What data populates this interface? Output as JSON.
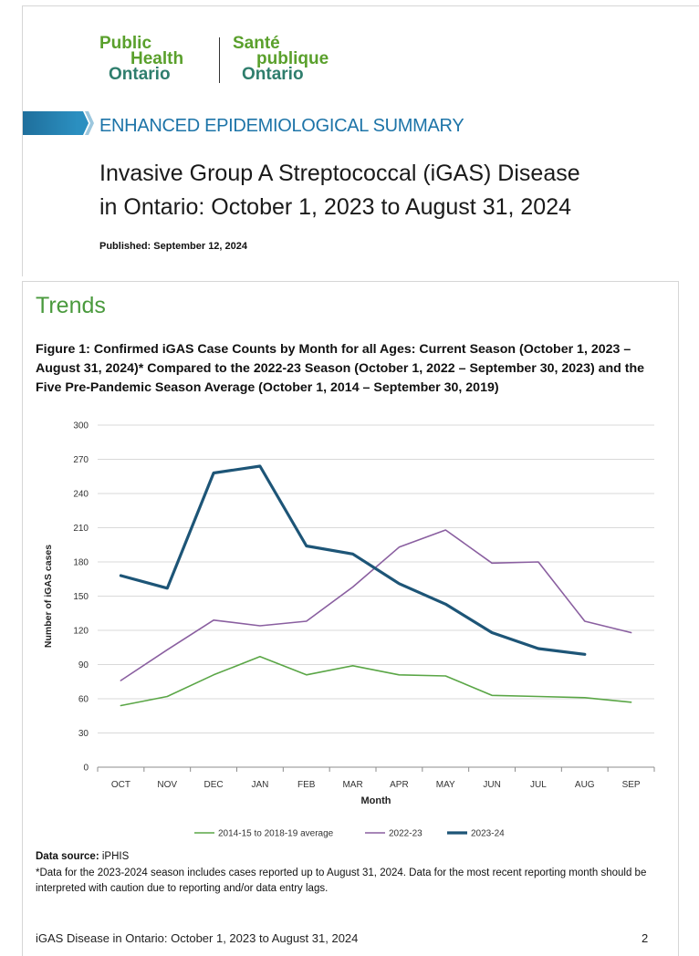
{
  "logo": {
    "en_line1": "Public",
    "en_line2": "Health",
    "en_line3": "Ontario",
    "fr_line1": "Santé",
    "fr_line2": "publique",
    "fr_line3": "Ontario"
  },
  "banner": "ENHANCED EPIDEMIOLOGICAL SUMMARY",
  "title_line1": "Invasive Group A Streptococcal (iGAS) Disease",
  "title_line2": "in Ontario: October 1, 2023 to August 31, 2024",
  "published": "Published: September 12, 2024",
  "section_heading": "Trends",
  "figure_caption": "Figure 1: Confirmed iGAS Case Counts by Month for all Ages: Current Season (October 1, 2023 – August 31, 2024)* Compared to the 2022-23 Season (October 1, 2022 – September 30, 2023) and the Five Pre-Pandemic Season Average (October 1, 2014 – September 30, 2019)",
  "data_source_label": "Data source:",
  "data_source_value": "iPHIS",
  "footnote": "*Data for the 2023-2024 season includes cases reported up to August 31, 2024. Data for the most recent reporting month should be interpreted with caution due to reporting and/or data entry lags.",
  "footer_left": "iGAS Disease in Ontario: October 1, 2023 to August 31, 2024",
  "footer_page": "2",
  "colors": {
    "avg": "#5aa646",
    "s2223": "#8a5fa0",
    "s2324": "#1d5577",
    "grid": "#d9d9d9",
    "heading_green": "#4a9a3d",
    "banner_blue": "#1d74a8"
  },
  "chart_data": {
    "type": "line",
    "xlabel": "Month",
    "ylabel": "Number of iGAS cases",
    "ylim": [
      0,
      300
    ],
    "yticks": [
      0,
      30,
      60,
      90,
      120,
      150,
      180,
      210,
      240,
      270,
      300
    ],
    "categories": [
      "OCT",
      "NOV",
      "DEC",
      "JAN",
      "FEB",
      "MAR",
      "APR",
      "MAY",
      "JUN",
      "JUL",
      "AUG",
      "SEP"
    ],
    "grid": true,
    "legend_position": "bottom",
    "series": [
      {
        "name": "2014-15 to 2018-19 average",
        "values": [
          54,
          62,
          81,
          97,
          81,
          89,
          81,
          80,
          63,
          62,
          61,
          57
        ]
      },
      {
        "name": "2022-23",
        "values": [
          76,
          103,
          129,
          124,
          128,
          158,
          193,
          208,
          179,
          180,
          128,
          118
        ]
      },
      {
        "name": "2023-24",
        "values": [
          168,
          157,
          258,
          264,
          194,
          187,
          161,
          143,
          118,
          104,
          99,
          null
        ]
      }
    ]
  }
}
